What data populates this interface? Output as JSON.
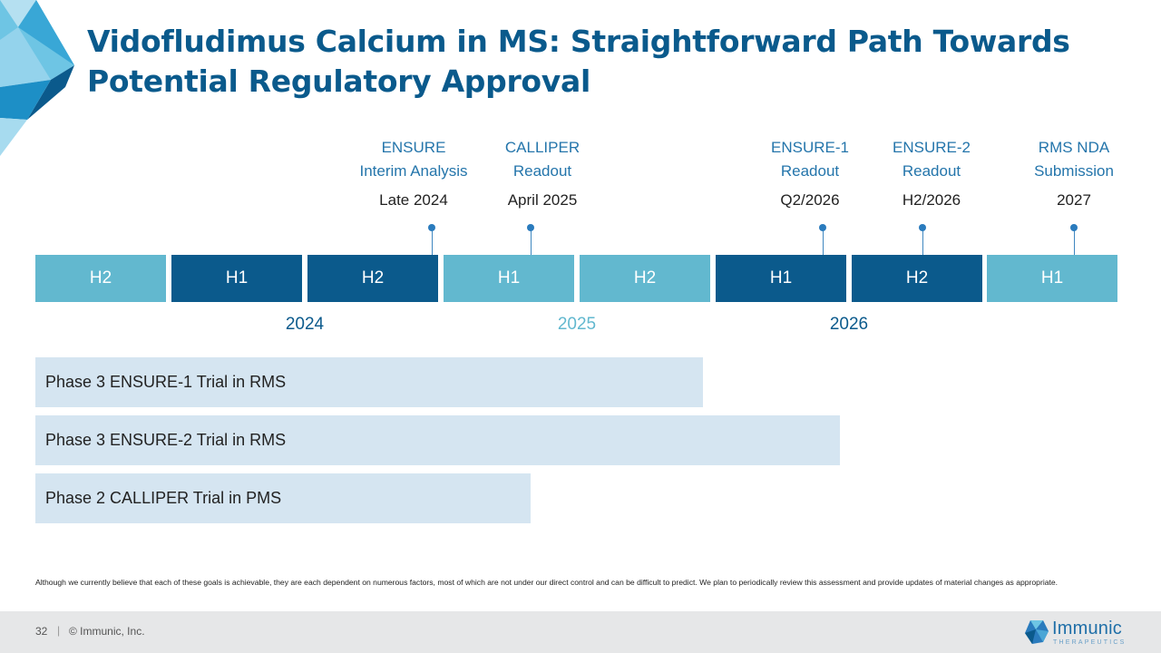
{
  "title": "Vidofludimus Calcium in MS: Straightforward Path Towards Potential Regulatory Approval",
  "colors": {
    "brand_dark": "#0b5a8c",
    "brand_light": "#62b8cf",
    "bar_fill": "#d5e5f1",
    "title": "#0a5a8c"
  },
  "milestones": [
    {
      "label": "ENSURE\nInterim Analysis",
      "date": "Late 2024"
    },
    {
      "label": "CALLIPER\nReadout",
      "date": "April 2025"
    },
    {
      "label": "ENSURE-1\nReadout",
      "date": "Q2/2026"
    },
    {
      "label": "ENSURE-2\nReadout",
      "date": "H2/2026"
    },
    {
      "label": "RMS NDA\nSubmission",
      "date": "2027"
    }
  ],
  "timeline": {
    "segments": [
      {
        "label": "H2",
        "shade": "light"
      },
      {
        "label": "H1",
        "shade": "dark"
      },
      {
        "label": "H2",
        "shade": "dark"
      },
      {
        "label": "H1",
        "shade": "light"
      },
      {
        "label": "H2",
        "shade": "light"
      },
      {
        "label": "H1",
        "shade": "dark"
      },
      {
        "label": "H2",
        "shade": "dark"
      },
      {
        "label": "H1",
        "shade": "light"
      }
    ],
    "years": [
      {
        "label": "2024",
        "color": "#0b5a8c"
      },
      {
        "label": "2025",
        "color": "#62b8cf"
      },
      {
        "label": "2026",
        "color": "#0b5a8c"
      }
    ]
  },
  "trials": [
    {
      "label": "Phase 3 ENSURE-1 Trial in RMS"
    },
    {
      "label": "Phase 3 ENSURE-2 Trial in RMS"
    },
    {
      "label": "Phase 2 CALLIPER Trial in PMS"
    }
  ],
  "disclaimer": "Although we currently believe that each of these goals is achievable, they are each dependent on numerous factors, most of which are not under our direct control and can be difficult to predict. We plan to periodically review this assessment and provide updates of material changes as appropriate.",
  "footer": {
    "page_number": "32",
    "separator": "|",
    "copyright": "© Immunic, Inc.",
    "logo_name": "Immunic",
    "logo_sub": "THERAPEUTICS"
  }
}
